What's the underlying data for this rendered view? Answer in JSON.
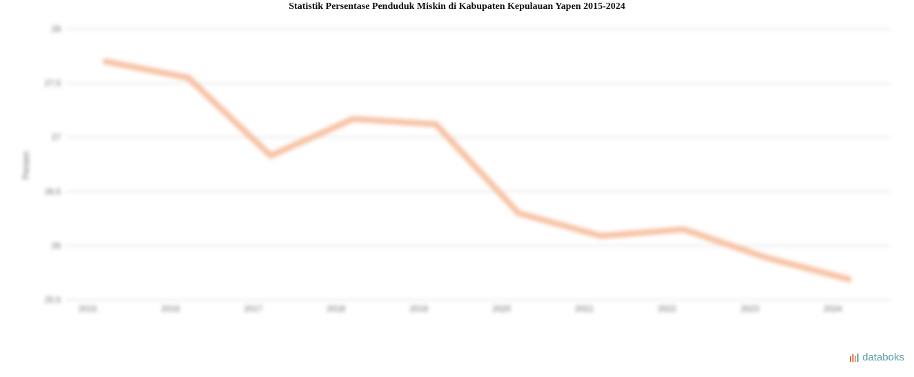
{
  "chart_data": {
    "type": "line",
    "title": "Statistik Persentase Penduduk Miskin di Kabupaten Kepulauan Yapen 2015-2024",
    "xlabel": "",
    "ylabel": "Persen",
    "categories": [
      "2015",
      "2016",
      "2017",
      "2018",
      "2019",
      "2020",
      "2021",
      "2022",
      "2023",
      "2024"
    ],
    "series": [
      {
        "values": [
          27.7,
          27.55,
          26.83,
          27.17,
          27.12,
          26.3,
          26.09,
          26.15,
          25.89,
          25.69
        ]
      }
    ],
    "ylim": [
      25.5,
      28
    ],
    "yticks": [
      "25.5",
      "26",
      "26.5",
      "27",
      "27.5",
      "28"
    ],
    "grid": true,
    "line_color": "#f7c3a5"
  },
  "brand": {
    "logo_text": "databoks",
    "logo_color": "#5a9aa8",
    "logo_accent": "#e8603c"
  }
}
